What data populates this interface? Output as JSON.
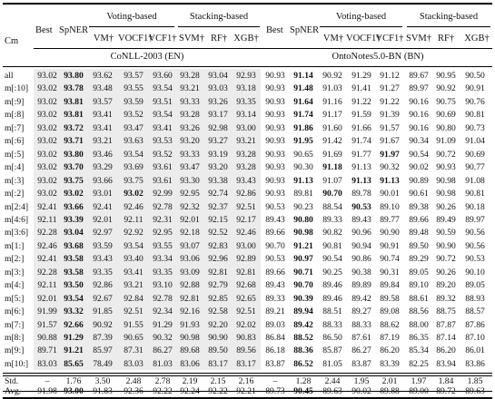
{
  "header": {
    "cm": "Cm",
    "best": "Best",
    "spner": "SpNER",
    "voting": "Voting-based",
    "stacking": "Stacking-based",
    "vm": "VM†",
    "vocf1": "VOCF1†",
    "vcf1": "VCF1†",
    "svm": "SVM†",
    "rf": "RF†",
    "xgb": "XGB†",
    "dataset_left": "CoNLL-2003 (EN)",
    "dataset_right": "OntoNotes5.0-BN (BN)"
  },
  "rows": [
    {
      "label": "all",
      "v": [
        "93.02",
        "93.80",
        "93.62",
        "93.57",
        "93.60",
        "93.28",
        "93.04",
        "92.93",
        "90.93",
        "91.14",
        "90.92",
        "91.29",
        "91.12",
        "89.67",
        "90.95",
        "90.50"
      ],
      "b": [
        1,
        9
      ]
    },
    {
      "label": "m[:10]",
      "v": [
        "93.02",
        "93.78",
        "93.48",
        "93.55",
        "93.54",
        "93.21",
        "93.03",
        "93.18",
        "90.93",
        "91.48",
        "91.03",
        "91.41",
        "91.27",
        "89.97",
        "90.92",
        "90.91"
      ],
      "b": [
        1,
        9
      ]
    },
    {
      "label": "m[:9]",
      "v": [
        "93.02",
        "93.81",
        "93.57",
        "93.59",
        "93.51",
        "93.33",
        "93.26",
        "93.35",
        "90.93",
        "91.64",
        "91.16",
        "91.22",
        "91.22",
        "90.16",
        "90.75",
        "90.76"
      ],
      "b": [
        1,
        9
      ]
    },
    {
      "label": "m[:8]",
      "v": [
        "93.02",
        "93.81",
        "93.41",
        "93.52",
        "93.54",
        "93.28",
        "93.17",
        "93.14",
        "90.93",
        "91.74",
        "91.17",
        "91.59",
        "91.39",
        "90.16",
        "90.69",
        "90.81"
      ],
      "b": [
        1,
        9
      ]
    },
    {
      "label": "m[:7]",
      "v": [
        "93.02",
        "93.72",
        "93.41",
        "93.47",
        "93.41",
        "93.26",
        "92.98",
        "93.00",
        "90.93",
        "91.86",
        "91.60",
        "91.66",
        "91.57",
        "90.16",
        "90.80",
        "90.73"
      ],
      "b": [
        1,
        9
      ]
    },
    {
      "label": "m[:6]",
      "v": [
        "93.02",
        "93.71",
        "93.21",
        "93.63",
        "93.53",
        "93.20",
        "93.27",
        "93.21",
        "90.93",
        "91.95",
        "91.42",
        "91.74",
        "91.67",
        "90.34",
        "91.09",
        "91.04"
      ],
      "b": [
        1,
        9
      ]
    },
    {
      "label": "m[:5]",
      "v": [
        "93.02",
        "93.80",
        "93.46",
        "93.54",
        "93.52",
        "93.33",
        "93.19",
        "93.28",
        "90.93",
        "90.65",
        "91.69",
        "91.77",
        "91.97",
        "90.54",
        "90.72",
        "90.69"
      ],
      "b": [
        1,
        12
      ]
    },
    {
      "label": "m[:4]",
      "v": [
        "93.02",
        "93.70",
        "93.29",
        "93.69",
        "93.61",
        "93.47",
        "93.20",
        "93.28",
        "90.93",
        "90.30",
        "91.18",
        "91.13",
        "90.32",
        "90.02",
        "90.93",
        "90.77"
      ],
      "b": [
        1,
        10
      ]
    },
    {
      "label": "m[:3]",
      "v": [
        "93.02",
        "93.75",
        "93.66",
        "93.75",
        "93.61",
        "93.30",
        "93.38",
        "93.43",
        "90.93",
        "91.13",
        "91.07",
        "91.13",
        "91.13",
        "90.89",
        "90.98",
        "91.08"
      ],
      "b": [
        1,
        9,
        11,
        12
      ]
    },
    {
      "label": "m[:2]",
      "v": [
        "93.02",
        "93.02",
        "93.01",
        "93.02",
        "92.99",
        "92.95",
        "92.74",
        "92.86",
        "90.93",
        "89.81",
        "90.70",
        "89.78",
        "90.01",
        "90.61",
        "90.98",
        "90.81"
      ],
      "b": [
        1,
        3,
        10
      ]
    },
    {
      "label": "m[2:4]",
      "v": [
        "92.41",
        "93.66",
        "92.41",
        "92.46",
        "92.78",
        "92.32",
        "92.37",
        "92.51",
        "90.53",
        "90.23",
        "88.54",
        "90.53",
        "89.10",
        "89.38",
        "90.26",
        "90.18"
      ],
      "b": [
        1,
        11
      ]
    },
    {
      "label": "m[4:6]",
      "v": [
        "92.11",
        "93.39",
        "92.01",
        "92.11",
        "92.31",
        "92.01",
        "92.15",
        "92.17",
        "89.43",
        "90.80",
        "89.33",
        "89.43",
        "89.77",
        "89.66",
        "89.49",
        "89.97"
      ],
      "b": [
        1,
        9
      ]
    },
    {
      "label": "m[3:6]",
      "v": [
        "92.28",
        "93.04",
        "92.97",
        "92.92",
        "92.95",
        "92.18",
        "92.52",
        "92.46",
        "89.66",
        "90.98",
        "90.82",
        "90.96",
        "90.90",
        "89.48",
        "90.59",
        "90.56"
      ],
      "b": [
        1,
        9
      ]
    },
    {
      "label": "m[1:]",
      "v": [
        "92.46",
        "93.68",
        "93.59",
        "93.54",
        "93.55",
        "93.07",
        "92.83",
        "93.00",
        "90.70",
        "91.21",
        "90.81",
        "90.94",
        "90.91",
        "89.50",
        "90.90",
        "90.56"
      ],
      "b": [
        1,
        9
      ]
    },
    {
      "label": "m[2:]",
      "v": [
        "92.41",
        "93.58",
        "93.43",
        "93.40",
        "93.34",
        "93.06",
        "92.96",
        "92.89",
        "90.53",
        "90.97",
        "90.54",
        "90.86",
        "90.74",
        "89.29",
        "90.72",
        "90.53"
      ],
      "b": [
        1,
        9
      ]
    },
    {
      "label": "m[3:]",
      "v": [
        "92.28",
        "93.58",
        "93.35",
        "93.41",
        "93.35",
        "93.09",
        "92.81",
        "92.81",
        "89.66",
        "90.71",
        "90.25",
        "90.38",
        "90.31",
        "89.05",
        "90.26",
        "90.10"
      ],
      "b": [
        1,
        9
      ]
    },
    {
      "label": "m[4:]",
      "v": [
        "92.11",
        "93.50",
        "92.86",
        "93.21",
        "93.10",
        "92.88",
        "92.79",
        "92.68",
        "89.43",
        "90.70",
        "89.46",
        "89.89",
        "89.84",
        "89.10",
        "89.20",
        "89.05"
      ],
      "b": [
        1,
        9
      ]
    },
    {
      "label": "m[5:]",
      "v": [
        "92.01",
        "93.54",
        "92.67",
        "92.84",
        "92.78",
        "92.81",
        "92.85",
        "92.65",
        "89.33",
        "90.39",
        "89.46",
        "89.42",
        "89.58",
        "88.61",
        "89.32",
        "88.93"
      ],
      "b": [
        1,
        9
      ]
    },
    {
      "label": "m[6:]",
      "v": [
        "91.99",
        "93.32",
        "91.85",
        "92.51",
        "92.34",
        "92.16",
        "92.58",
        "92.51",
        "89.21",
        "89.94",
        "88.51",
        "89.27",
        "89.08",
        "88.56",
        "88.75",
        "88.57"
      ],
      "b": [
        1,
        9
      ]
    },
    {
      "label": "m[7:]",
      "v": [
        "91.57",
        "92.66",
        "90.92",
        "91.55",
        "91.29",
        "91.93",
        "92.20",
        "92.02",
        "89.03",
        "89.42",
        "88.33",
        "88.33",
        "88.62",
        "88.00",
        "87.87",
        "87.86"
      ],
      "b": [
        1,
        9
      ]
    },
    {
      "label": "m[8:]",
      "v": [
        "90.88",
        "91.29",
        "87.39",
        "90.65",
        "90.32",
        "90.98",
        "90.90",
        "90.83",
        "86.84",
        "88.52",
        "86.50",
        "87.61",
        "87.19",
        "86.35",
        "87.14",
        "87.10"
      ],
      "b": [
        1,
        9
      ]
    },
    {
      "label": "m[9:]",
      "v": [
        "89.71",
        "91.21",
        "85.97",
        "87.31",
        "86.27",
        "89.68",
        "89.50",
        "89.56",
        "86.18",
        "88.36",
        "85.87",
        "86.27",
        "86.20",
        "85.34",
        "86.20",
        "86.01"
      ],
      "b": [
        1,
        9
      ]
    },
    {
      "label": "m[10:]",
      "v": [
        "83.03",
        "85.65",
        "78.49",
        "83.03",
        "81.03",
        "83.06",
        "83.17",
        "83.17",
        "83.87",
        "86.52",
        "81.05",
        "83.87",
        "83.39",
        "82.25",
        "83.94",
        "83.86"
      ],
      "b": [
        1,
        9
      ]
    }
  ],
  "std": {
    "label": "Std.",
    "v": [
      "–",
      "1.76",
      "3.50",
      "2.48",
      "2.78",
      "2.19",
      "2.15",
      "2.16",
      "–",
      "1.28",
      "2.44",
      "1.95",
      "2.01",
      "1.97",
      "1.84",
      "1.85"
    ]
  },
  "avg": {
    "label": "Avg.",
    "v": [
      "91.98",
      "93.00",
      "91.83",
      "92.36",
      "92.22",
      "92.24",
      "92.22",
      "92.21",
      "89.73",
      "90.45",
      "89.63",
      "90.02",
      "89.88",
      "89.00",
      "89.72",
      "89.63"
    ],
    "b": [
      1,
      9
    ]
  }
}
